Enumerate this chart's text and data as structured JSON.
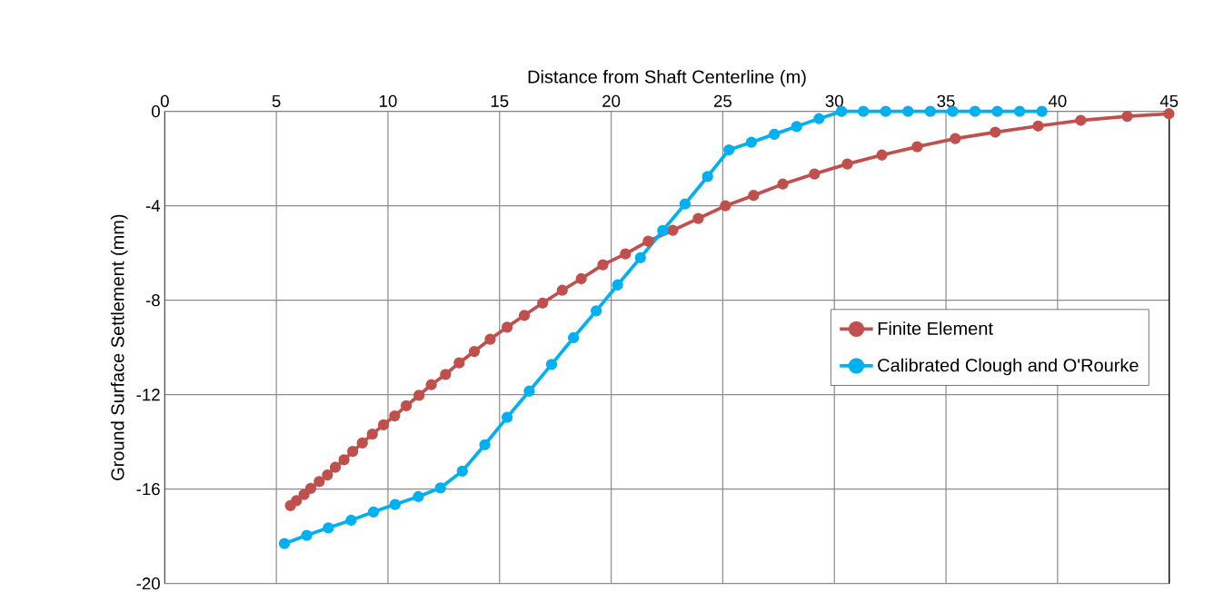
{
  "chart_data": {
    "type": "line",
    "xlabel": "Distance from Shaft Centerline (m)",
    "ylabel": "Ground Surface Settlement (mm)",
    "xlim": [
      0,
      45
    ],
    "xticks": [
      0,
      5,
      10,
      15,
      20,
      25,
      30,
      35,
      40,
      45
    ],
    "ylim": [
      -20,
      0
    ],
    "yticks": [
      -20,
      -16,
      -12,
      -8,
      -4,
      0
    ],
    "grid": true,
    "legend": "right",
    "marker": "circle",
    "line_style": "solid",
    "series": [
      {
        "name": "Finite Element",
        "color": "#c0504d",
        "x": [
          5.63,
          5.9,
          6.24,
          6.54,
          6.92,
          7.29,
          7.64,
          8.03,
          8.42,
          8.85,
          9.3,
          9.8,
          10.3,
          10.82,
          11.39,
          11.94,
          12.58,
          13.19,
          13.87,
          14.58,
          15.34,
          16.11,
          16.93,
          17.81,
          18.66,
          19.63,
          20.64,
          21.66,
          22.76,
          23.9,
          25.12,
          26.38,
          27.69,
          29.11,
          30.58,
          32.13,
          33.71,
          35.42,
          37.21,
          39.13,
          41.04,
          43.12,
          44.99
        ],
        "values": [
          -16.7,
          -16.49,
          -16.23,
          -15.97,
          -15.68,
          -15.4,
          -15.08,
          -14.76,
          -14.4,
          -14.05,
          -13.67,
          -13.28,
          -12.9,
          -12.47,
          -12.03,
          -11.58,
          -11.14,
          -10.65,
          -10.17,
          -9.65,
          -9.14,
          -8.64,
          -8.12,
          -7.58,
          -7.09,
          -6.5,
          -6.04,
          -5.5,
          -5.04,
          -4.54,
          -4.0,
          -3.56,
          -3.08,
          -2.65,
          -2.23,
          -1.85,
          -1.5,
          -1.15,
          -0.88,
          -0.62,
          -0.38,
          -0.21,
          -0.1
        ]
      },
      {
        "name": "Calibrated Clough and O'Rourke",
        "color": "#00b0f0",
        "x": [
          5.36,
          6.36,
          7.33,
          8.35,
          9.35,
          10.32,
          11.36,
          12.35,
          13.33,
          14.34,
          15.34,
          16.33,
          17.33,
          18.31,
          19.33,
          20.29,
          21.31,
          22.31,
          23.31,
          24.32,
          25.28,
          26.28,
          27.31,
          28.31,
          29.31,
          30.32,
          31.3,
          32.3,
          33.3,
          34.3,
          35.3,
          36.3,
          37.3,
          38.3,
          39.3
        ],
        "values": [
          -18.31,
          -17.96,
          -17.64,
          -17.32,
          -16.97,
          -16.65,
          -16.32,
          -15.95,
          -15.24,
          -14.12,
          -12.96,
          -11.85,
          -10.72,
          -9.59,
          -8.45,
          -7.35,
          -6.2,
          -5.05,
          -3.92,
          -2.76,
          -1.63,
          -1.31,
          -0.97,
          -0.64,
          -0.31,
          0,
          0,
          0,
          0,
          0,
          0,
          0,
          0,
          0,
          0
        ]
      }
    ]
  }
}
